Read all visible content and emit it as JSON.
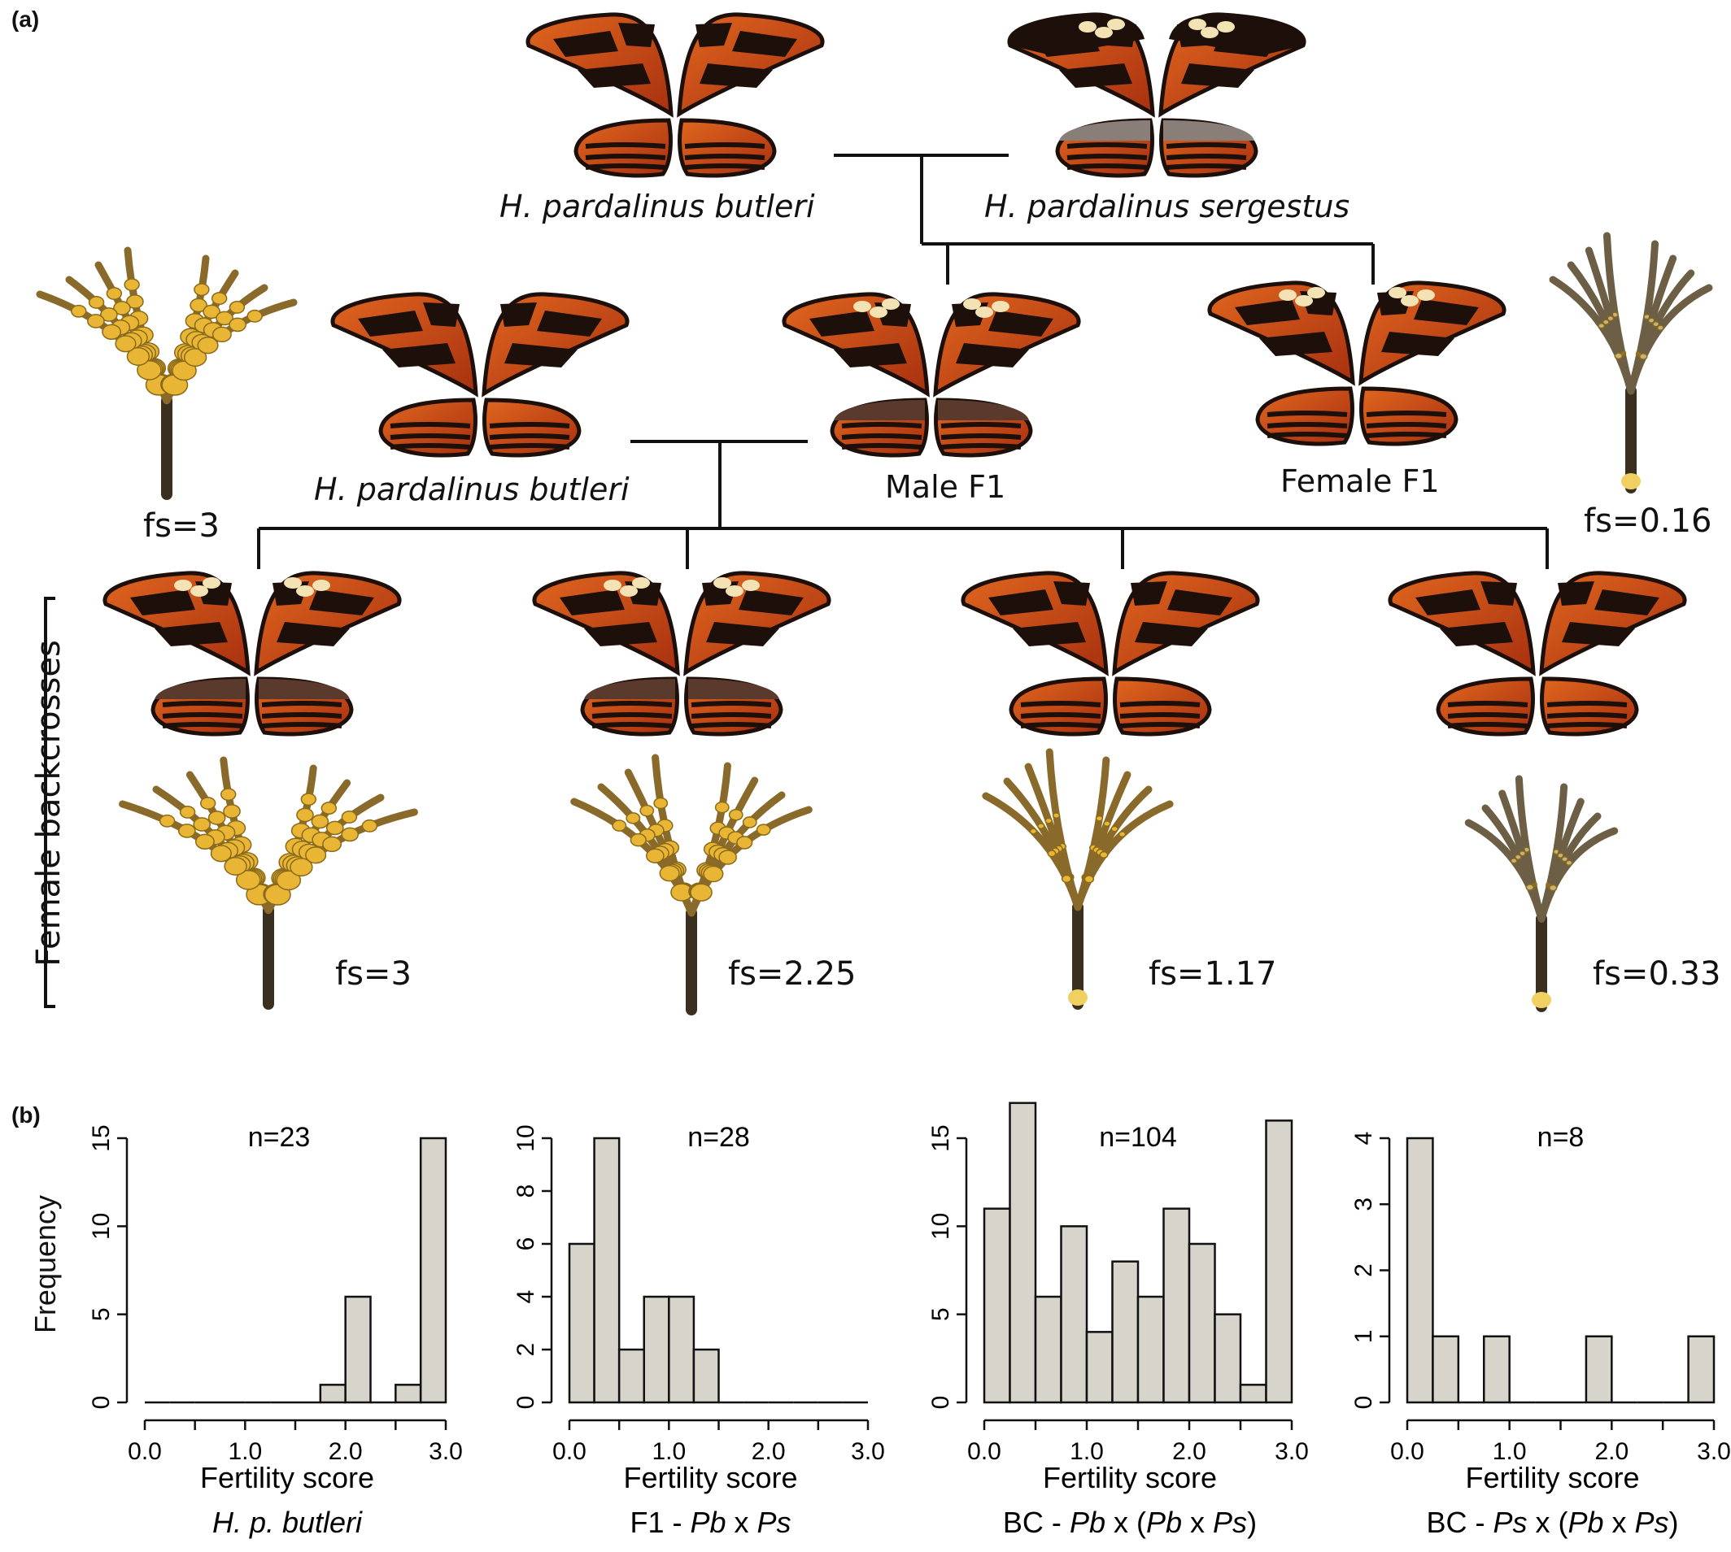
{
  "panel_a": {
    "label": "(a)",
    "parents": [
      {
        "name": "H. pardalinus butleri"
      },
      {
        "name": "H. pardalinus sergestus"
      }
    ],
    "generation_f1": [
      {
        "name": "H. pardalinus butleri",
        "fs": "fs=3"
      },
      {
        "name": "Male F1"
      },
      {
        "name": "Female F1",
        "fs": "fs=0.16"
      }
    ],
    "backcross_label": "Female backcrosses",
    "backcrosses": [
      {
        "fs": "fs=3"
      },
      {
        "fs": "fs=2.25"
      },
      {
        "fs": "fs=1.17"
      },
      {
        "fs": "fs=0.33"
      }
    ],
    "colors": {
      "wing_orange": "#c8461a",
      "wing_black": "#1d0f0a",
      "wing_cream": "#f3e2b3",
      "ovary_yellow": "#e8b535",
      "ovary_dark": "#3b3020"
    }
  },
  "panel_b": {
    "label": "(b)",
    "ylabel": "Frequency"
  },
  "chart_data": [
    {
      "type": "bar",
      "annotation": "n=23",
      "xlabel": "Fertility score",
      "subtitle": "H. p. butleri",
      "bin_edges": [
        0,
        0.25,
        0.5,
        0.75,
        1.0,
        1.25,
        1.5,
        1.75,
        2.0,
        2.25,
        2.5,
        2.75,
        3.0
      ],
      "values": [
        0,
        0,
        0,
        0,
        0,
        0,
        0,
        1,
        6,
        0,
        1,
        15
      ],
      "ylim": [
        0,
        15
      ],
      "yticks": [
        0,
        5,
        10,
        15
      ],
      "xticks": [
        "0.0",
        "1.0",
        "2.0",
        "3.0"
      ],
      "bar_color": "#d7d4cc"
    },
    {
      "type": "bar",
      "annotation": "n=28",
      "xlabel": "Fertility score",
      "subtitle_parts": [
        [
          "F1 - ",
          false
        ],
        [
          "Pb",
          true
        ],
        [
          " x ",
          false
        ],
        [
          "Ps",
          true
        ]
      ],
      "bin_edges": [
        0,
        0.25,
        0.5,
        0.75,
        1.0,
        1.25,
        1.5,
        1.75,
        2.0,
        2.25,
        2.5,
        2.75,
        3.0
      ],
      "values": [
        6,
        10,
        2,
        4,
        4,
        2,
        0,
        0,
        0,
        0,
        0,
        0
      ],
      "ylim": [
        0,
        10
      ],
      "yticks": [
        0,
        2,
        4,
        6,
        8,
        10
      ],
      "xticks": [
        "0.0",
        "1.0",
        "2.0",
        "3.0"
      ],
      "bar_color": "#d7d4cc"
    },
    {
      "type": "bar",
      "annotation": "n=104",
      "xlabel": "Fertility score",
      "subtitle_parts": [
        [
          "BC - ",
          false
        ],
        [
          "Pb",
          true
        ],
        [
          " x (",
          false
        ],
        [
          "Pb",
          true
        ],
        [
          " x ",
          false
        ],
        [
          "Ps",
          true
        ],
        [
          ")",
          false
        ]
      ],
      "bin_edges": [
        0,
        0.25,
        0.5,
        0.75,
        1.0,
        1.25,
        1.5,
        1.75,
        2.0,
        2.25,
        2.5,
        2.75,
        3.0
      ],
      "values": [
        11,
        17,
        6,
        10,
        4,
        8,
        6,
        11,
        9,
        5,
        1,
        16
      ],
      "ylim": [
        0,
        15
      ],
      "yticks": [
        0,
        5,
        10,
        15
      ],
      "xticks": [
        "0.0",
        "1.0",
        "2.0",
        "3.0"
      ],
      "bar_color": "#d7d4cc"
    },
    {
      "type": "bar",
      "annotation": "n=8",
      "xlabel": "Fertility score",
      "subtitle_parts": [
        [
          "BC - ",
          false
        ],
        [
          "Ps",
          true
        ],
        [
          " x (",
          false
        ],
        [
          "Pb",
          true
        ],
        [
          " x ",
          false
        ],
        [
          "Ps",
          true
        ],
        [
          ")",
          false
        ]
      ],
      "bin_edges": [
        0,
        0.25,
        0.5,
        0.75,
        1.0,
        1.25,
        1.5,
        1.75,
        2.0,
        2.25,
        2.5,
        2.75,
        3.0
      ],
      "values": [
        4,
        1,
        0,
        1,
        0,
        0,
        0,
        1,
        0,
        0,
        0,
        1
      ],
      "ylim": [
        0,
        4
      ],
      "yticks": [
        0,
        1,
        2,
        3,
        4
      ],
      "xticks": [
        "0.0",
        "1.0",
        "2.0",
        "3.0"
      ],
      "bar_color": "#d7d4cc"
    }
  ]
}
